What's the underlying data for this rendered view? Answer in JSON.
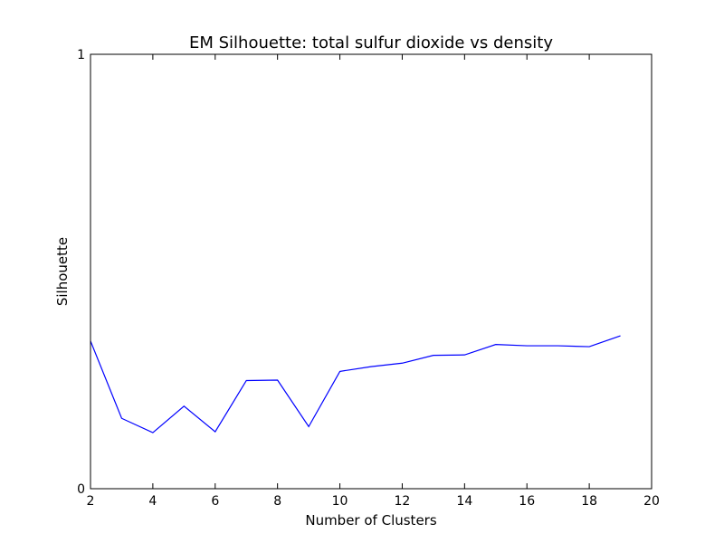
{
  "chart_data": {
    "type": "line",
    "title": "EM Silhouette: total sulfur dioxide vs density",
    "xlabel": "Number of Clusters",
    "ylabel": "Silhouette",
    "xlim": [
      2,
      20
    ],
    "ylim": [
      0,
      1
    ],
    "xticks": [
      2,
      4,
      6,
      8,
      10,
      12,
      14,
      16,
      18,
      20
    ],
    "yticks": [
      0,
      1
    ],
    "grid": false,
    "series": [
      {
        "color": "#0000ff",
        "x": [
          2,
          3,
          4,
          5,
          6,
          7,
          8,
          9,
          10,
          11,
          12,
          13,
          14,
          15,
          16,
          17,
          18,
          19
        ],
        "y": [
          0.34,
          0.162,
          0.129,
          0.19,
          0.131,
          0.249,
          0.25,
          0.143,
          0.27,
          0.281,
          0.289,
          0.307,
          0.308,
          0.332,
          0.329,
          0.329,
          0.327,
          0.352
        ]
      }
    ]
  }
}
